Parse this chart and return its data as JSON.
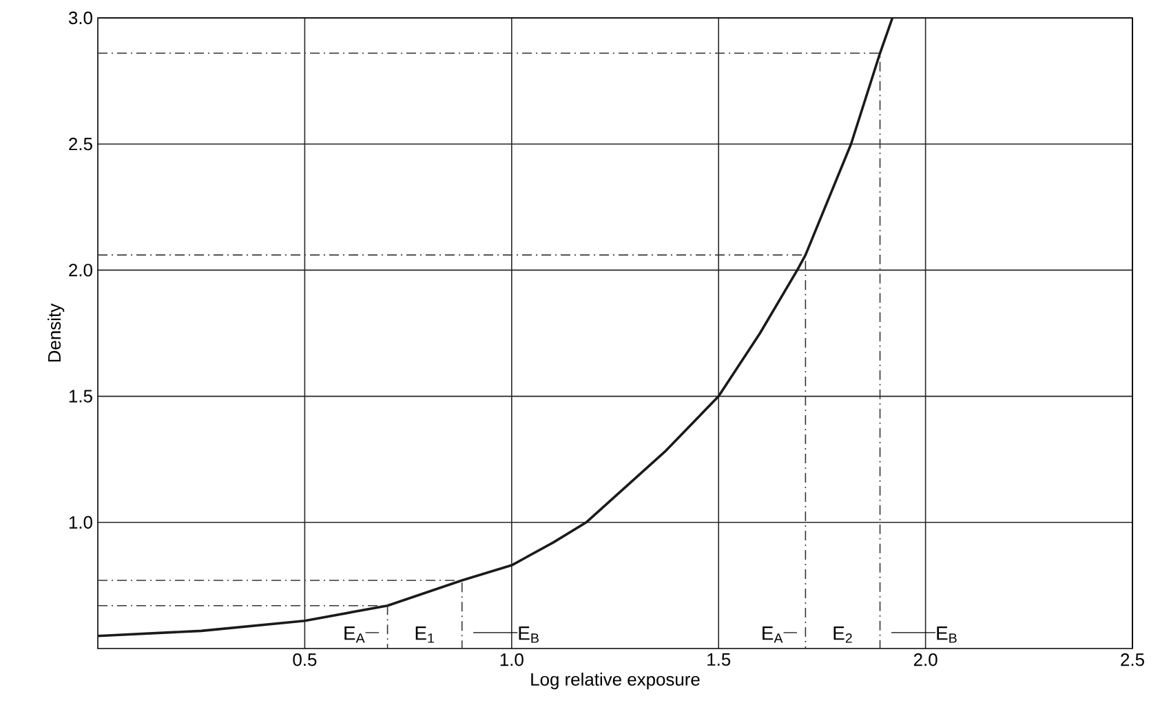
{
  "chart_data": {
    "type": "line",
    "xlabel": "Log relative exposure",
    "ylabel": "Density",
    "xlim": [
      0,
      2.5
    ],
    "ylim": [
      0.5,
      3.0
    ],
    "xticks": [
      {
        "value": 0.5,
        "label": "0.5"
      },
      {
        "value": 1.0,
        "label": "1.0"
      },
      {
        "value": 1.5,
        "label": "1.5"
      },
      {
        "value": 2.0,
        "label": "2.0"
      },
      {
        "value": 2.5,
        "label": "2.5"
      }
    ],
    "yticks": [
      {
        "value": 1.0,
        "label": "1.0"
      },
      {
        "value": 1.5,
        "label": "1.5"
      },
      {
        "value": 2.0,
        "label": "2.0"
      },
      {
        "value": 2.5,
        "label": "2.5"
      },
      {
        "value": 3.0,
        "label": "3.0"
      }
    ],
    "grid": true,
    "marker": "none",
    "series": [
      {
        "color": "#1a1a1a",
        "line_style": "solid",
        "x": [
          0,
          0.25,
          0.5,
          0.7,
          0.88,
          1.0,
          1.1,
          1.18,
          1.37,
          1.5,
          1.6,
          1.69,
          1.71,
          1.82,
          1.89,
          1.92
        ],
        "values": [
          0.55,
          0.57,
          0.61,
          0.67,
          0.77,
          0.83,
          0.92,
          1.0,
          1.28,
          1.5,
          1.75,
          2.0,
          2.06,
          2.5,
          2.86,
          3.0
        ]
      },
      {
        "color": "#333333",
        "line_style": "dashed",
        "x": [
          0,
          0.7,
          0.7
        ],
        "values": [
          0.67,
          0.67,
          0.5
        ]
      },
      {
        "color": "#333333",
        "line_style": "dashed",
        "x": [
          0,
          0.88,
          0.88
        ],
        "values": [
          0.77,
          0.77,
          0.5
        ]
      },
      {
        "color": "#333333",
        "line_style": "dashed",
        "x": [
          0,
          1.71,
          1.71
        ],
        "values": [
          2.06,
          2.06,
          0.5
        ]
      },
      {
        "color": "#333333",
        "line_style": "dashed",
        "x": [
          0,
          1.89,
          1.89
        ],
        "values": [
          2.86,
          2.86,
          0.5
        ]
      }
    ],
    "annotations": [
      "E$_{A}$",
      "E$_{1}$",
      "E$_{B}$",
      "E$_{A}$",
      "E$_{2}$",
      "E$_{B}$"
    ]
  }
}
